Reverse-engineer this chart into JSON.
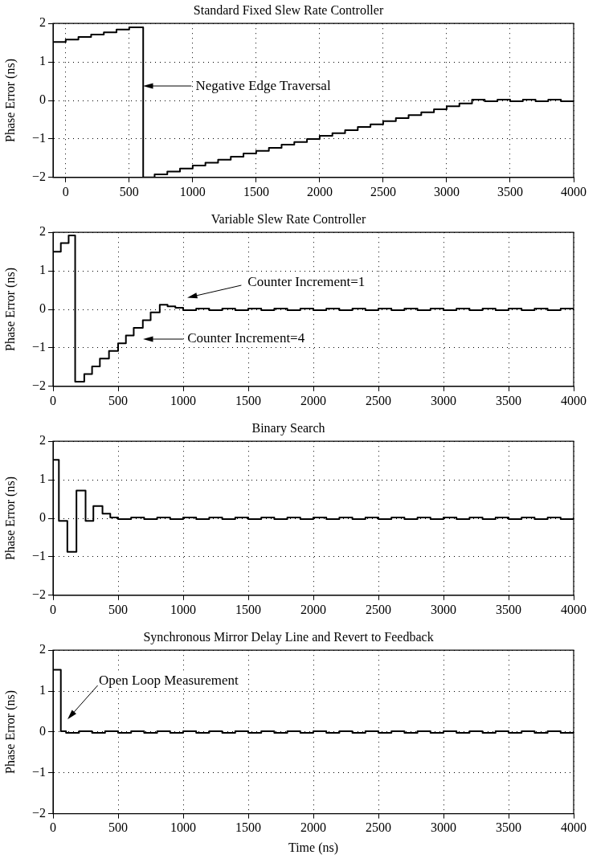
{
  "chart_data": [
    {
      "type": "step",
      "title": "Standard Fixed Slew Rate Controller",
      "ylabel": "Phase Error (ns)",
      "color": "#000000",
      "x": [
        -100,
        0,
        100,
        200,
        300,
        400,
        500,
        610,
        700,
        800,
        900,
        1000,
        1100,
        1200,
        1300,
        1400,
        1500,
        1600,
        1700,
        1800,
        1900,
        2000,
        2100,
        2200,
        2300,
        2400,
        2500,
        2600,
        2700,
        2800,
        2900,
        3000,
        3100,
        3200,
        3300,
        3400,
        3500,
        3600,
        3700,
        3800,
        3900,
        4000
      ],
      "values": [
        1.52,
        1.58,
        1.65,
        1.71,
        1.77,
        1.84,
        1.9,
        -2.0,
        -1.92,
        -1.85,
        -1.77,
        -1.69,
        -1.62,
        -1.54,
        -1.46,
        -1.38,
        -1.31,
        -1.23,
        -1.15,
        -1.08,
        -1.0,
        -0.92,
        -0.85,
        -0.77,
        -0.69,
        -0.62,
        -0.54,
        -0.46,
        -0.38,
        -0.31,
        -0.23,
        -0.15,
        -0.08,
        0.02,
        -0.02,
        0.02,
        -0.02,
        0.02,
        -0.02,
        0.02,
        -0.02,
        -0.02
      ],
      "xlim": [
        -100,
        4000
      ],
      "xticks": [
        0,
        500,
        1000,
        1500,
        2000,
        2500,
        3000,
        3500,
        4000
      ],
      "ylim": [
        -2,
        2
      ],
      "yticks": [
        -2,
        -1,
        0,
        1,
        2
      ],
      "grid": true,
      "annotations": [
        "Negative Edge Traversal"
      ]
    },
    {
      "type": "step",
      "title": "Variable Slew Rate Controller",
      "ylabel": "Phase Error (ns)",
      "color": "#000000",
      "x": [
        0,
        60,
        120,
        170,
        240,
        300,
        360,
        430,
        500,
        560,
        620,
        690,
        750,
        820,
        880,
        940,
        1000,
        1100,
        1200,
        1300,
        1400,
        1500,
        1600,
        1700,
        1800,
        1900,
        2000,
        2100,
        2200,
        2300,
        2400,
        2500,
        2600,
        2700,
        2800,
        2900,
        3000,
        3100,
        3200,
        3300,
        3400,
        3500,
        3600,
        3700,
        3800,
        3900,
        4000
      ],
      "values": [
        1.5,
        1.72,
        1.92,
        -1.88,
        -1.68,
        -1.48,
        -1.28,
        -1.08,
        -0.88,
        -0.68,
        -0.48,
        -0.28,
        -0.08,
        0.12,
        0.08,
        0.04,
        -0.02,
        0.02,
        -0.02,
        0.02,
        -0.02,
        0.02,
        -0.02,
        0.02,
        -0.02,
        0.02,
        -0.02,
        0.02,
        -0.02,
        0.02,
        -0.02,
        0.02,
        -0.02,
        0.02,
        -0.02,
        0.02,
        -0.02,
        0.02,
        -0.02,
        0.02,
        -0.02,
        0.02,
        -0.02,
        0.02,
        -0.02,
        0.02,
        -0.02
      ],
      "xlim": [
        0,
        4000
      ],
      "xticks": [
        0,
        500,
        1000,
        1500,
        2000,
        2500,
        3000,
        3500,
        4000
      ],
      "ylim": [
        -2,
        2
      ],
      "yticks": [
        -2,
        -1,
        0,
        1,
        2
      ],
      "grid": true,
      "annotations": [
        "Counter Increment=1",
        "Counter Increment=4"
      ]
    },
    {
      "type": "step",
      "title": "Binary Search",
      "ylabel": "Phase Error (ns)",
      "color": "#000000",
      "x": [
        0,
        45,
        110,
        180,
        250,
        310,
        380,
        440,
        500,
        600,
        700,
        800,
        900,
        1000,
        1100,
        1200,
        1300,
        1400,
        1500,
        1600,
        1700,
        1800,
        1900,
        2000,
        2100,
        2200,
        2300,
        2400,
        2500,
        2600,
        2700,
        2800,
        2900,
        3000,
        3100,
        3200,
        3300,
        3400,
        3500,
        3600,
        3700,
        3800,
        3900,
        4000
      ],
      "values": [
        1.52,
        -0.07,
        -0.87,
        0.72,
        -0.07,
        0.32,
        0.12,
        0.02,
        -0.02,
        0.02,
        -0.02,
        0.02,
        -0.02,
        0.02,
        -0.02,
        0.02,
        -0.02,
        0.02,
        -0.02,
        0.02,
        -0.02,
        0.02,
        -0.02,
        0.02,
        -0.02,
        0.02,
        -0.02,
        0.02,
        -0.02,
        0.02,
        -0.02,
        0.02,
        -0.02,
        0.02,
        -0.02,
        0.02,
        -0.02,
        0.02,
        -0.02,
        0.02,
        -0.02,
        0.02,
        -0.02,
        0.02
      ],
      "xlim": [
        0,
        4000
      ],
      "xticks": [
        0,
        500,
        1000,
        1500,
        2000,
        2500,
        3000,
        3500,
        4000
      ],
      "ylim": [
        -2,
        2
      ],
      "yticks": [
        -2,
        -1,
        0,
        1,
        2
      ],
      "grid": true
    },
    {
      "type": "step",
      "title": "Synchronous Mirror Delay Line and Revert to Feedback",
      "xlabel": "Time (ns)",
      "ylabel": "Phase Error (ns)",
      "color": "#000000",
      "x": [
        0,
        60,
        100,
        200,
        300,
        400,
        500,
        600,
        700,
        800,
        900,
        1000,
        1100,
        1200,
        1300,
        1400,
        1500,
        1600,
        1700,
        1800,
        1900,
        2000,
        2100,
        2200,
        2300,
        2400,
        2500,
        2600,
        2700,
        2800,
        2900,
        3000,
        3100,
        3200,
        3300,
        3400,
        3500,
        3600,
        3700,
        3800,
        3900,
        4000
      ],
      "values": [
        1.52,
        0.02,
        -0.02,
        0.02,
        -0.02,
        0.02,
        -0.02,
        0.02,
        -0.02,
        0.02,
        -0.02,
        0.02,
        -0.02,
        0.02,
        -0.02,
        0.02,
        -0.02,
        0.02,
        -0.02,
        0.02,
        -0.02,
        0.02,
        -0.02,
        0.02,
        -0.02,
        0.02,
        -0.02,
        0.02,
        -0.02,
        0.02,
        -0.02,
        0.02,
        -0.02,
        0.02,
        -0.02,
        0.02,
        -0.02,
        0.02,
        -0.02,
        0.02,
        -0.02,
        0.02
      ],
      "xlim": [
        0,
        4000
      ],
      "xticks": [
        0,
        500,
        1000,
        1500,
        2000,
        2500,
        3000,
        3500,
        4000
      ],
      "ylim": [
        -2,
        2
      ],
      "yticks": [
        -2,
        -1,
        0,
        1,
        2
      ],
      "grid": true,
      "annotations": [
        "Open Loop Measurement"
      ]
    }
  ]
}
